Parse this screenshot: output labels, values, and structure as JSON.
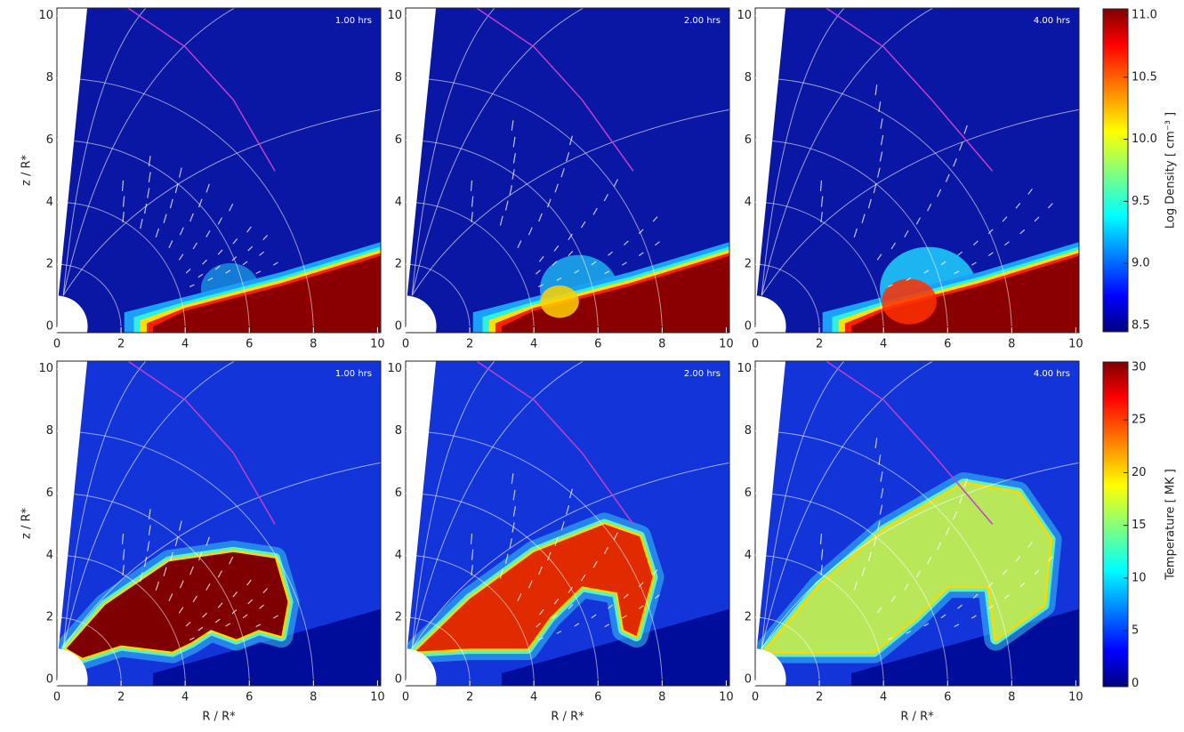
{
  "chart_data": [
    {
      "type": "image",
      "annotation": "1.00 hrs",
      "ylabel": "z / R*",
      "xlim": [
        0,
        10.1
      ],
      "ylim": [
        -0.2,
        10.25
      ],
      "xticks": [
        0,
        2,
        4,
        6,
        8,
        10
      ],
      "yticks": [
        0,
        2,
        4,
        6,
        8,
        10
      ]
    },
    {
      "type": "image",
      "annotation": "2.00 hrs",
      "xlim": [
        0,
        10.1
      ],
      "ylim": [
        -0.2,
        10.25
      ],
      "xticks": [
        0,
        2,
        4,
        6,
        8,
        10
      ],
      "yticks": [
        0,
        2,
        4,
        6,
        8,
        10
      ]
    },
    {
      "type": "image",
      "annotation": "4.00 hrs",
      "xlim": [
        0,
        10.1
      ],
      "ylim": [
        -0.2,
        10.25
      ],
      "xticks": [
        0,
        2,
        4,
        6,
        8,
        10
      ],
      "yticks": [
        0,
        2,
        4,
        6,
        8,
        10
      ]
    },
    {
      "type": "image",
      "annotation": "1.00 hrs",
      "xlabel": "R / R*",
      "ylabel": "z / R*",
      "xlim": [
        0,
        10.1
      ],
      "ylim": [
        -0.2,
        10.25
      ],
      "xticks": [
        0,
        2,
        4,
        6,
        8,
        10
      ],
      "yticks": [
        0,
        2,
        4,
        6,
        8,
        10
      ]
    },
    {
      "type": "image",
      "annotation": "2.00 hrs",
      "xlabel": "R / R*",
      "xlim": [
        0,
        10.1
      ],
      "ylim": [
        -0.2,
        10.25
      ],
      "xticks": [
        0,
        2,
        4,
        6,
        8,
        10
      ],
      "yticks": [
        0,
        2,
        4,
        6,
        8,
        10
      ]
    },
    {
      "type": "image",
      "annotation": "4.00 hrs",
      "xlabel": "R / R*",
      "xlim": [
        0,
        10.1
      ],
      "ylim": [
        -0.2,
        10.25
      ],
      "xticks": [
        0,
        2,
        4,
        6,
        8,
        10
      ],
      "yticks": [
        0,
        2,
        4,
        6,
        8,
        10
      ]
    },
    {
      "type": "colorbar",
      "colormap": "jet",
      "ylabel": "Log Density [ cm⁻³ ]",
      "ylim": [
        8.45,
        11.05
      ],
      "yticks": [
        8.5,
        {
          "value": 9,
          "label": "9.0"
        },
        9.5,
        {
          "value": 10,
          "label": "10.0"
        },
        10.5,
        {
          "value": 11,
          "label": "11.0"
        }
      ]
    },
    {
      "type": "colorbar",
      "colormap": "jet",
      "ylabel": "Temperature [ MK ]",
      "ylim": [
        -0.3,
        30.5
      ],
      "yticks": [
        0,
        5,
        10,
        15,
        20,
        25,
        30
      ]
    }
  ]
}
